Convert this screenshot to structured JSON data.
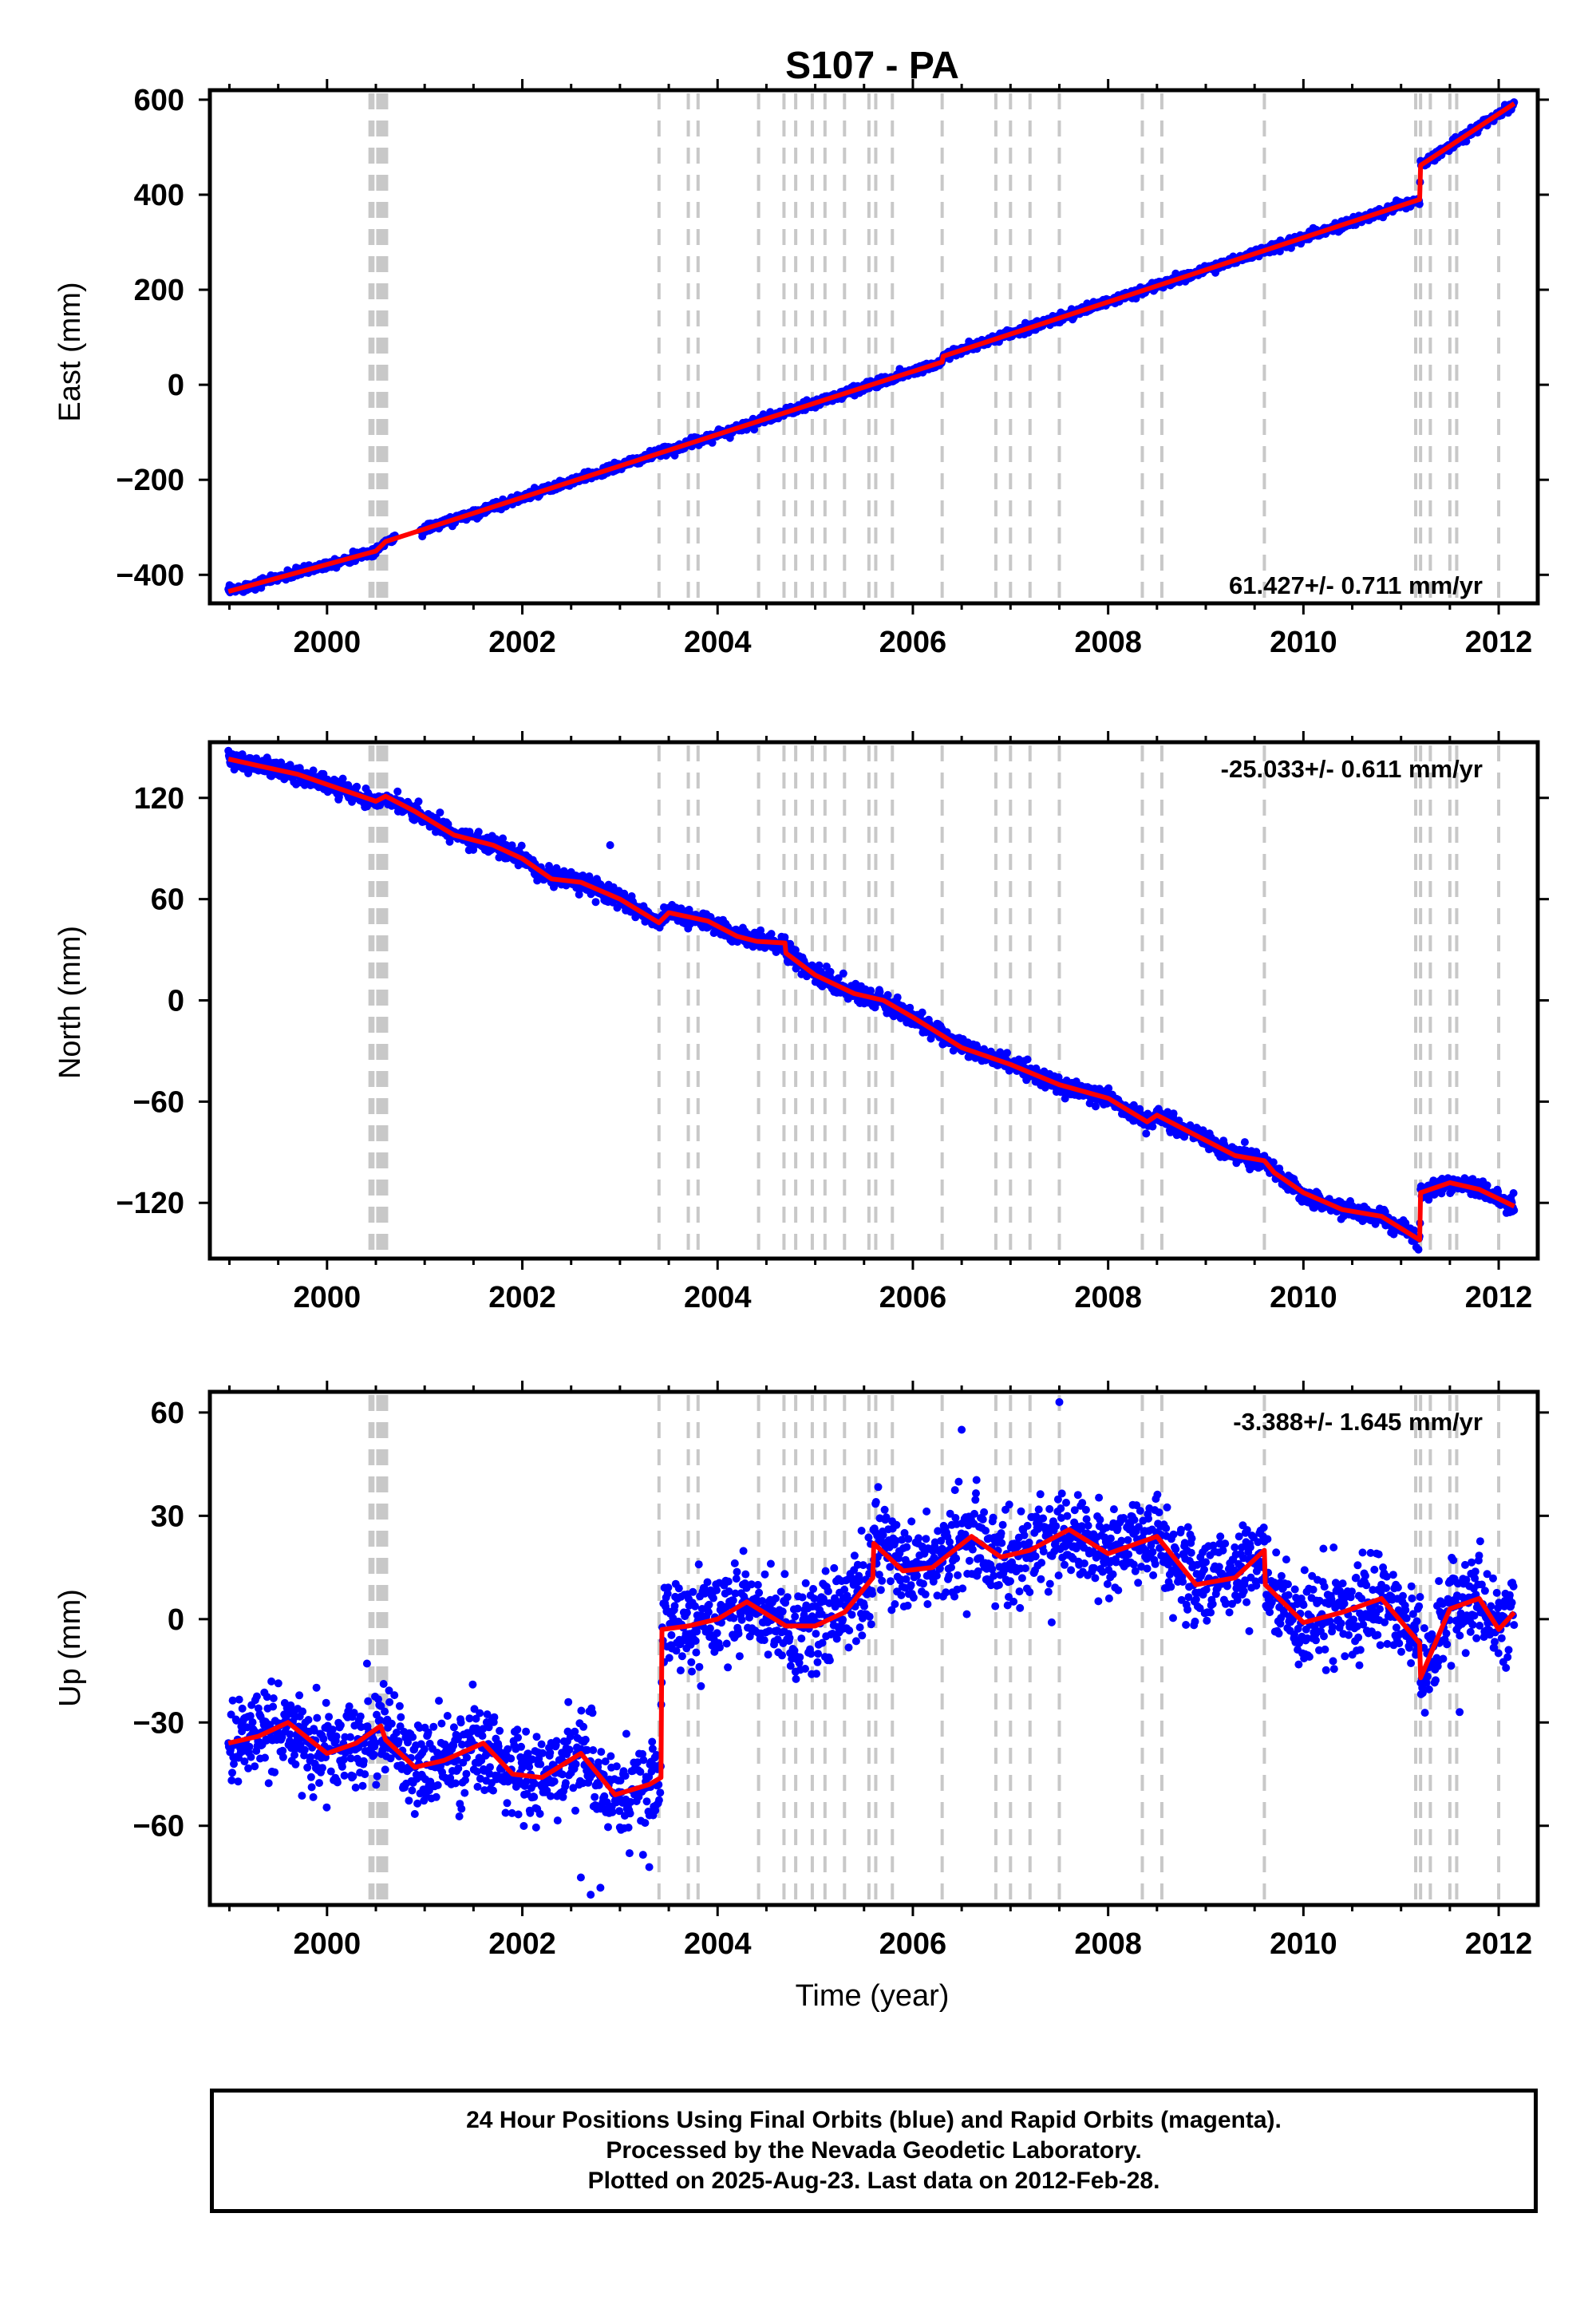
{
  "title": "S107 - PA",
  "colors": {
    "points": "#0000ff",
    "model": "#ff0000",
    "event_lines": "#c8c8c8",
    "frame": "#000000"
  },
  "chart_data": [
    {
      "type": "scatter",
      "component": "east",
      "ylabel": "East (mm)",
      "xlabel": "",
      "rate_label": "61.427+/- 0.711 mm/yr",
      "xlim": [
        1998.8,
        2012.4
      ],
      "ylim": [
        -460,
        620
      ],
      "xticks": [
        2000,
        2002,
        2004,
        2006,
        2008,
        2010,
        2012
      ],
      "yticks": [
        -400,
        -200,
        0,
        200,
        400,
        600
      ],
      "model": {
        "x": [
          1998.99,
          2000.5,
          2000.6,
          2006.3,
          2006.31,
          2011.19,
          2011.2,
          2012.16
        ],
        "y": [
          -435,
          -350,
          -330,
          48,
          60,
          390,
          462,
          592
        ]
      },
      "noise_mm": 4.5,
      "outliers": [
        [
          1999.2,
          -430
        ],
        [
          2004.8,
          -55
        ],
        [
          2010.1,
          330
        ]
      ]
    },
    {
      "type": "scatter",
      "component": "north",
      "ylabel": "North (mm)",
      "xlabel": "",
      "rate_label": "-25.033+/- 0.611 mm/yr",
      "xlim": [
        1998.8,
        2012.4
      ],
      "ylim": [
        -153,
        153
      ],
      "xticks": [
        2000,
        2002,
        2004,
        2006,
        2008,
        2010,
        2012
      ],
      "yticks": [
        -120,
        -60,
        0,
        60,
        120
      ],
      "model": {
        "x": [
          1998.99,
          1999.3,
          1999.7,
          2000.0,
          2000.5,
          2000.6,
          2000.9,
          2001.3,
          2001.7,
          2002.0,
          2002.3,
          2002.6,
          2003.0,
          2003.4,
          2003.5,
          2003.9,
          2004.2,
          2004.4,
          2004.69,
          2004.7,
          2005.0,
          2005.4,
          2005.7,
          2006.0,
          2006.5,
          2007.0,
          2007.5,
          2008.0,
          2008.4,
          2008.5,
          2008.9,
          2009.3,
          2009.6,
          2009.7,
          2010.0,
          2010.4,
          2010.8,
          2011.19,
          2011.2,
          2011.5,
          2011.8,
          2012.16
        ],
        "y": [
          143,
          139,
          134,
          128,
          118,
          121,
          112,
          98,
          92,
          84,
          72,
          70,
          60,
          46,
          52,
          47,
          38,
          35,
          34,
          28,
          15,
          4,
          0,
          -10,
          -28,
          -38,
          -50,
          -58,
          -72,
          -68,
          -80,
          -92,
          -95,
          -102,
          -114,
          -124,
          -128,
          -142,
          -114,
          -108,
          -112,
          -122
        ]
      },
      "noise_mm": 2.5,
      "outliers": [
        [
          2001.8,
          96
        ],
        [
          2002.5,
          76
        ],
        [
          2002.9,
          92
        ],
        [
          2009.4,
          -84
        ]
      ]
    },
    {
      "type": "scatter",
      "component": "up",
      "ylabel": "Up (mm)",
      "xlabel": "Time (year)",
      "rate_label": "-3.388+/- 1.645 mm/yr",
      "xlim": [
        1998.8,
        2012.4
      ],
      "ylim": [
        -83,
        66
      ],
      "xticks": [
        2000,
        2002,
        2004,
        2006,
        2008,
        2010,
        2012
      ],
      "yticks": [
        -60,
        -30,
        0,
        30,
        60
      ],
      "model": {
        "x": [
          1998.99,
          1999.3,
          1999.6,
          2000.0,
          2000.3,
          2000.55,
          2000.6,
          2000.9,
          2001.2,
          2001.6,
          2001.9,
          2002.2,
          2002.6,
          2002.95,
          2003.3,
          2003.42,
          2003.43,
          2003.7,
          2004.0,
          2004.3,
          2004.7,
          2005.0,
          2005.3,
          2005.59,
          2005.6,
          2005.9,
          2006.2,
          2006.6,
          2006.9,
          2007.2,
          2007.6,
          2008.0,
          2008.5,
          2008.9,
          2009.3,
          2009.6,
          2009.61,
          2010.0,
          2010.4,
          2010.8,
          2011.19,
          2011.2,
          2011.5,
          2011.8,
          2012.0,
          2012.16
        ],
        "y": [
          -36,
          -34,
          -30,
          -39,
          -36,
          -31,
          -35,
          -43,
          -41,
          -36,
          -45,
          -46,
          -39,
          -51,
          -48,
          -46,
          -3,
          -2,
          0,
          5,
          -2,
          -2,
          2,
          12,
          22,
          14,
          15,
          24,
          18,
          20,
          26,
          19,
          24,
          10,
          12,
          20,
          10,
          -1,
          2,
          6,
          -7,
          -17,
          3,
          6,
          -3,
          2
        ]
      },
      "noise_mm": 6.5,
      "outliers": [
        [
          2002.6,
          -75
        ],
        [
          2002.7,
          -80
        ],
        [
          2002.8,
          -78
        ],
        [
          2003.3,
          -72
        ],
        [
          2007.5,
          63
        ],
        [
          2006.5,
          55
        ],
        [
          2011.6,
          -27
        ]
      ]
    }
  ],
  "event_lines": [
    2000.44,
    2000.47,
    2000.52,
    2000.55,
    2000.58,
    2000.61,
    2003.4,
    2003.7,
    2003.8,
    2004.42,
    2004.68,
    2004.8,
    2004.97,
    2005.1,
    2005.3,
    2005.55,
    2005.62,
    2005.79,
    2006.3,
    2006.85,
    2007.0,
    2007.2,
    2007.5,
    2008.35,
    2008.55,
    2009.6,
    2011.15,
    2011.2,
    2011.3,
    2011.5,
    2011.57,
    2012.0
  ],
  "footnote": {
    "line1": "24 Hour Positions Using Final Orbits (blue) and Rapid Orbits (magenta).",
    "line2": "Processed by the Nevada Geodetic Laboratory.",
    "line3": "Plotted on 2025-Aug-23. Last data on 2012-Feb-28."
  }
}
